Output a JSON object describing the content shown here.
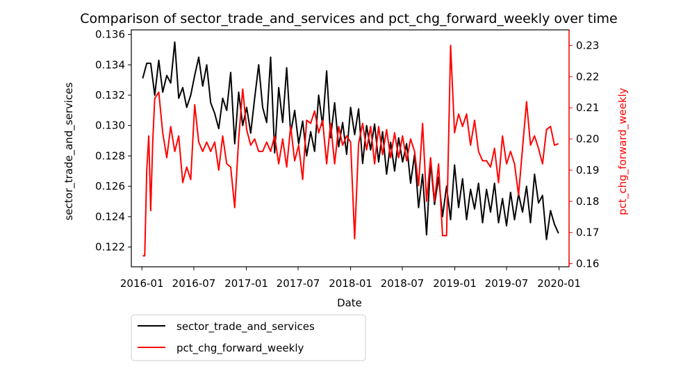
{
  "chart_data": {
    "type": "line",
    "title": "Comparison of sector_trade_and_services and pct_chg_forward_weekly over time",
    "xlabel": "Date",
    "ylabel_left": "sector_trade_and_services",
    "ylabel_right": "pct_chg_forward_weekly",
    "x_ticks": [
      "2016-01",
      "2016-07",
      "2017-01",
      "2017-07",
      "2018-01",
      "2018-07",
      "2019-01",
      "2019-07",
      "2020-01"
    ],
    "y_left_ticks": [
      "0.122",
      "0.124",
      "0.126",
      "0.128",
      "0.130",
      "0.132",
      "0.134",
      "0.136"
    ],
    "y_right_ticks": [
      "0.16",
      "0.17",
      "0.18",
      "0.19",
      "0.20",
      "0.21",
      "0.22",
      "0.23"
    ],
    "x_range": [
      "2015-11-25",
      "2020-02-05"
    ],
    "ylim_left": [
      0.1207,
      0.1363
    ],
    "ylim_right": [
      0.159,
      0.235
    ],
    "legend_placement": "below-left",
    "grid": false,
    "colors": {
      "sector_trade_and_services": "#000000",
      "pct_chg_forward_weekly": "#ff0000"
    },
    "series": [
      {
        "name": "sector_trade_and_services",
        "axis": "left",
        "points": [
          [
            "2016-01-04",
            0.1331
          ],
          [
            "2016-01-18",
            0.1341
          ],
          [
            "2016-02-01",
            0.1341
          ],
          [
            "2016-02-15",
            0.132
          ],
          [
            "2016-02-29",
            0.1343
          ],
          [
            "2016-03-14",
            0.1322
          ],
          [
            "2016-03-28",
            0.1333
          ],
          [
            "2016-04-11",
            0.1328
          ],
          [
            "2016-04-25",
            0.1355
          ],
          [
            "2016-05-09",
            0.1318
          ],
          [
            "2016-05-23",
            0.1325
          ],
          [
            "2016-06-06",
            0.1312
          ],
          [
            "2016-06-20",
            0.132
          ],
          [
            "2016-07-04",
            0.1333
          ],
          [
            "2016-07-18",
            0.1345
          ],
          [
            "2016-08-01",
            0.1326
          ],
          [
            "2016-08-15",
            0.134
          ],
          [
            "2016-08-29",
            0.1315
          ],
          [
            "2016-09-12",
            0.1308
          ],
          [
            "2016-09-26",
            0.1298
          ],
          [
            "2016-10-10",
            0.1318
          ],
          [
            "2016-10-24",
            0.131
          ],
          [
            "2016-11-07",
            0.1335
          ],
          [
            "2016-11-21",
            0.1288
          ],
          [
            "2016-12-05",
            0.1322
          ],
          [
            "2016-12-19",
            0.13
          ],
          [
            "2017-01-02",
            0.1312
          ],
          [
            "2017-01-16",
            0.1295
          ],
          [
            "2017-01-30",
            0.1318
          ],
          [
            "2017-02-13",
            0.134
          ],
          [
            "2017-02-27",
            0.1312
          ],
          [
            "2017-03-13",
            0.1302
          ],
          [
            "2017-03-27",
            0.1345
          ],
          [
            "2017-04-10",
            0.1282
          ],
          [
            "2017-04-24",
            0.1325
          ],
          [
            "2017-05-08",
            0.1302
          ],
          [
            "2017-05-22",
            0.1338
          ],
          [
            "2017-06-05",
            0.1295
          ],
          [
            "2017-06-19",
            0.131
          ],
          [
            "2017-07-03",
            0.1288
          ],
          [
            "2017-07-17",
            0.1303
          ],
          [
            "2017-07-31",
            0.128
          ],
          [
            "2017-08-14",
            0.1296
          ],
          [
            "2017-08-28",
            0.1283
          ],
          [
            "2017-09-11",
            0.132
          ],
          [
            "2017-09-25",
            0.13
          ],
          [
            "2017-10-09",
            0.1336
          ],
          [
            "2017-10-23",
            0.1292
          ],
          [
            "2017-11-06",
            0.1315
          ],
          [
            "2017-11-20",
            0.1286
          ],
          [
            "2017-12-04",
            0.1302
          ],
          [
            "2017-12-18",
            0.1281
          ],
          [
            "2018-01-01",
            0.1312
          ],
          [
            "2018-01-15",
            0.1294
          ],
          [
            "2018-01-29",
            0.1311
          ],
          [
            "2018-02-12",
            0.1275
          ],
          [
            "2018-02-26",
            0.13
          ],
          [
            "2018-03-12",
            0.1284
          ],
          [
            "2018-03-26",
            0.1301
          ],
          [
            "2018-04-09",
            0.1276
          ],
          [
            "2018-04-23",
            0.1296
          ],
          [
            "2018-05-07",
            0.1268
          ],
          [
            "2018-05-21",
            0.1289
          ],
          [
            "2018-06-04",
            0.127
          ],
          [
            "2018-06-18",
            0.1292
          ],
          [
            "2018-07-02",
            0.1276
          ],
          [
            "2018-07-16",
            0.1288
          ],
          [
            "2018-07-30",
            0.1262
          ],
          [
            "2018-08-13",
            0.1281
          ],
          [
            "2018-08-27",
            0.1246
          ],
          [
            "2018-09-10",
            0.1268
          ],
          [
            "2018-09-24",
            0.1228
          ],
          [
            "2018-10-08",
            0.1276
          ],
          [
            "2018-10-22",
            0.1248
          ],
          [
            "2018-11-05",
            0.1266
          ],
          [
            "2018-11-19",
            0.124
          ],
          [
            "2018-12-03",
            0.126
          ],
          [
            "2018-12-17",
            0.1238
          ],
          [
            "2018-12-31",
            0.1274
          ],
          [
            "2019-01-14",
            0.1246
          ],
          [
            "2019-01-28",
            0.1265
          ],
          [
            "2019-02-11",
            0.1238
          ],
          [
            "2019-02-25",
            0.1258
          ],
          [
            "2019-03-11",
            0.1245
          ],
          [
            "2019-03-25",
            0.1262
          ],
          [
            "2019-04-08",
            0.1236
          ],
          [
            "2019-04-22",
            0.1258
          ],
          [
            "2019-05-06",
            0.1243
          ],
          [
            "2019-05-20",
            0.1262
          ],
          [
            "2019-06-03",
            0.1236
          ],
          [
            "2019-06-17",
            0.1252
          ],
          [
            "2019-07-01",
            0.1234
          ],
          [
            "2019-07-15",
            0.1256
          ],
          [
            "2019-07-29",
            0.1238
          ],
          [
            "2019-08-12",
            0.1255
          ],
          [
            "2019-08-26",
            0.1243
          ],
          [
            "2019-09-09",
            0.126
          ],
          [
            "2019-09-23",
            0.1236
          ],
          [
            "2019-10-07",
            0.1268
          ],
          [
            "2019-10-21",
            0.1249
          ],
          [
            "2019-11-04",
            0.1254
          ],
          [
            "2019-11-18",
            0.1225
          ],
          [
            "2019-12-02",
            0.1244
          ],
          [
            "2019-12-16",
            0.1235
          ],
          [
            "2019-12-30",
            0.1229
          ]
        ]
      },
      {
        "name": "pct_chg_forward_weekly",
        "axis": "right",
        "points": [
          [
            "2016-01-04",
            0.1625
          ],
          [
            "2016-01-11",
            0.1625
          ],
          [
            "2016-01-18",
            0.19
          ],
          [
            "2016-01-25",
            0.201
          ],
          [
            "2016-02-01",
            0.177
          ],
          [
            "2016-02-08",
            0.199
          ],
          [
            "2016-02-15",
            0.213
          ],
          [
            "2016-02-29",
            0.215
          ],
          [
            "2016-03-14",
            0.202
          ],
          [
            "2016-03-28",
            0.194
          ],
          [
            "2016-04-11",
            0.204
          ],
          [
            "2016-04-25",
            0.196
          ],
          [
            "2016-05-09",
            0.201
          ],
          [
            "2016-05-23",
            0.186
          ],
          [
            "2016-06-06",
            0.191
          ],
          [
            "2016-06-20",
            0.187
          ],
          [
            "2016-07-04",
            0.211
          ],
          [
            "2016-07-18",
            0.199
          ],
          [
            "2016-08-01",
            0.196
          ],
          [
            "2016-08-15",
            0.199
          ],
          [
            "2016-08-29",
            0.196
          ],
          [
            "2016-09-12",
            0.199
          ],
          [
            "2016-09-26",
            0.19
          ],
          [
            "2016-10-10",
            0.201
          ],
          [
            "2016-10-24",
            0.192
          ],
          [
            "2016-11-07",
            0.191
          ],
          [
            "2016-11-21",
            0.178
          ],
          [
            "2016-12-05",
            0.2
          ],
          [
            "2016-12-19",
            0.216
          ],
          [
            "2017-01-02",
            0.203
          ],
          [
            "2017-01-16",
            0.198
          ],
          [
            "2017-01-30",
            0.2
          ],
          [
            "2017-02-13",
            0.196
          ],
          [
            "2017-02-27",
            0.196
          ],
          [
            "2017-03-13",
            0.199
          ],
          [
            "2017-03-27",
            0.196
          ],
          [
            "2017-04-10",
            0.201
          ],
          [
            "2017-04-24",
            0.192
          ],
          [
            "2017-05-08",
            0.2
          ],
          [
            "2017-05-22",
            0.191
          ],
          [
            "2017-06-05",
            0.204
          ],
          [
            "2017-06-19",
            0.193
          ],
          [
            "2017-07-03",
            0.198
          ],
          [
            "2017-07-17",
            0.187
          ],
          [
            "2017-07-31",
            0.206
          ],
          [
            "2017-08-14",
            0.205
          ],
          [
            "2017-08-28",
            0.209
          ],
          [
            "2017-09-11",
            0.202
          ],
          [
            "2017-09-25",
            0.206
          ],
          [
            "2017-10-09",
            0.192
          ],
          [
            "2017-10-23",
            0.205
          ],
          [
            "2017-11-06",
            0.192
          ],
          [
            "2017-11-20",
            0.204
          ],
          [
            "2017-12-04",
            0.198
          ],
          [
            "2017-12-18",
            0.201
          ],
          [
            "2018-01-01",
            0.199
          ],
          [
            "2018-01-15",
            0.168
          ],
          [
            "2018-01-29",
            0.1985
          ],
          [
            "2018-02-12",
            0.205
          ],
          [
            "2018-02-26",
            0.1965
          ],
          [
            "2018-03-12",
            0.204
          ],
          [
            "2018-03-26",
            0.192
          ],
          [
            "2018-04-09",
            0.204
          ],
          [
            "2018-04-23",
            0.195
          ],
          [
            "2018-05-07",
            0.203
          ],
          [
            "2018-05-21",
            0.194
          ],
          [
            "2018-06-04",
            0.202
          ],
          [
            "2018-06-18",
            0.194
          ],
          [
            "2018-07-02",
            0.201
          ],
          [
            "2018-07-16",
            0.193
          ],
          [
            "2018-07-30",
            0.2
          ],
          [
            "2018-08-13",
            0.196
          ],
          [
            "2018-08-27",
            0.185
          ],
          [
            "2018-09-10",
            0.205
          ],
          [
            "2018-09-24",
            0.18
          ],
          [
            "2018-10-08",
            0.194
          ],
          [
            "2018-10-22",
            0.18
          ],
          [
            "2018-11-05",
            0.192
          ],
          [
            "2018-11-19",
            0.169
          ],
          [
            "2018-12-03",
            0.169
          ],
          [
            "2018-12-17",
            0.23
          ],
          [
            "2018-12-31",
            0.202
          ],
          [
            "2019-01-14",
            0.208
          ],
          [
            "2019-01-28",
            0.204
          ],
          [
            "2019-02-11",
            0.208
          ],
          [
            "2019-02-25",
            0.198
          ],
          [
            "2019-03-11",
            0.206
          ],
          [
            "2019-03-25",
            0.196
          ],
          [
            "2019-04-08",
            0.193
          ],
          [
            "2019-04-22",
            0.193
          ],
          [
            "2019-05-06",
            0.191
          ],
          [
            "2019-05-20",
            0.197
          ],
          [
            "2019-06-03",
            0.186
          ],
          [
            "2019-06-17",
            0.201
          ],
          [
            "2019-07-01",
            0.192
          ],
          [
            "2019-07-15",
            0.196
          ],
          [
            "2019-07-29",
            0.192
          ],
          [
            "2019-08-12",
            0.182
          ],
          [
            "2019-08-26",
            0.197
          ],
          [
            "2019-09-09",
            0.212
          ],
          [
            "2019-09-23",
            0.198
          ],
          [
            "2019-10-07",
            0.201
          ],
          [
            "2019-10-21",
            0.197
          ],
          [
            "2019-11-04",
            0.192
          ],
          [
            "2019-11-18",
            0.203
          ],
          [
            "2019-12-02",
            0.204
          ],
          [
            "2019-12-16",
            0.198
          ],
          [
            "2019-12-30",
            0.1985
          ]
        ]
      }
    ]
  }
}
